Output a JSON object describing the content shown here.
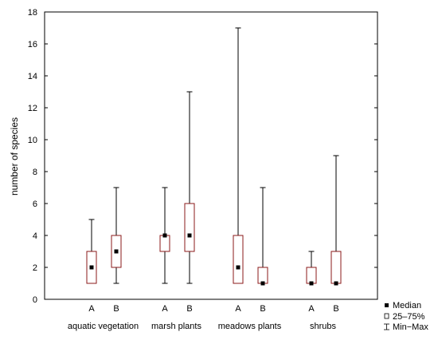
{
  "chart_data": {
    "type": "boxplot",
    "ylabel": "number of species",
    "ylim": [
      0,
      18
    ],
    "yticks": [
      0,
      2,
      4,
      6,
      8,
      10,
      12,
      14,
      16,
      18
    ],
    "grid": false,
    "legend_position": "bottom-right",
    "legend": {
      "median": "Median",
      "box": "25–75%",
      "whisker": "Min−Max"
    },
    "colors": {
      "box": "#8b1a1a",
      "whisker": "#000000",
      "median": "#000000"
    },
    "groups": [
      {
        "name": "aquatic vegetation",
        "boxes": [
          {
            "label": "A",
            "min": 1,
            "q1": 1,
            "median": 2,
            "q3": 3,
            "max": 5
          },
          {
            "label": "B",
            "min": 1,
            "q1": 2,
            "median": 3,
            "q3": 4,
            "max": 7
          }
        ]
      },
      {
        "name": "marsh plants",
        "boxes": [
          {
            "label": "A",
            "min": 1,
            "q1": 3,
            "median": 4,
            "q3": 4,
            "max": 7
          },
          {
            "label": "B",
            "min": 1,
            "q1": 3,
            "median": 4,
            "q3": 6,
            "max": 13
          }
        ]
      },
      {
        "name": "meadows plants",
        "boxes": [
          {
            "label": "A",
            "min": 1,
            "q1": 1,
            "median": 2,
            "q3": 4,
            "max": 17
          },
          {
            "label": "B",
            "min": 1,
            "q1": 1,
            "median": 1,
            "q3": 2,
            "max": 7
          }
        ]
      },
      {
        "name": "shrubs",
        "boxes": [
          {
            "label": "A",
            "min": 1,
            "q1": 1,
            "median": 1,
            "q3": 2,
            "max": 3
          },
          {
            "label": "B",
            "min": 1,
            "q1": 1,
            "median": 1,
            "q3": 3,
            "max": 9
          }
        ]
      }
    ]
  }
}
